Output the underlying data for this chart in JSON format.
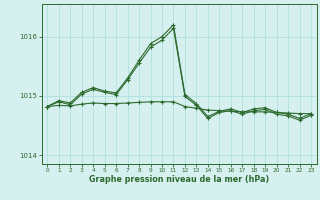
{
  "hours": [
    0,
    1,
    2,
    3,
    4,
    5,
    6,
    7,
    8,
    9,
    10,
    11,
    12,
    13,
    14,
    15,
    16,
    17,
    18,
    19,
    20,
    21,
    22,
    23
  ],
  "trend": [
    1014.82,
    1014.84,
    1014.83,
    1014.86,
    1014.88,
    1014.87,
    1014.87,
    1014.88,
    1014.89,
    1014.9,
    1014.9,
    1014.9,
    1014.82,
    1014.79,
    1014.76,
    1014.75,
    1014.74,
    1014.73,
    1014.73,
    1014.73,
    1014.72,
    1014.71,
    1014.7,
    1014.7
  ],
  "hourly": [
    1014.82,
    1014.92,
    1014.88,
    1015.06,
    1015.14,
    1015.08,
    1015.05,
    1015.3,
    1015.6,
    1015.88,
    1016.0,
    1016.2,
    1015.02,
    1014.87,
    1014.65,
    1014.74,
    1014.78,
    1014.72,
    1014.78,
    1014.8,
    1014.72,
    1014.69,
    1014.62,
    1014.7
  ],
  "hourly2": [
    1014.82,
    1014.9,
    1014.85,
    1015.03,
    1015.11,
    1015.06,
    1015.02,
    1015.27,
    1015.55,
    1015.82,
    1015.94,
    1016.14,
    1014.99,
    1014.84,
    1014.62,
    1014.72,
    1014.75,
    1014.69,
    1014.75,
    1014.77,
    1014.69,
    1014.66,
    1014.59,
    1014.67
  ],
  "bg_color": "#d6f0f0",
  "grid_color": "#aadddd",
  "line_color": "#2d6a2d",
  "ylim_min": 1013.85,
  "ylim_max": 1016.55,
  "yticks": [
    1014,
    1015,
    1016
  ],
  "xlabel": "Graphe pression niveau de la mer (hPa)"
}
